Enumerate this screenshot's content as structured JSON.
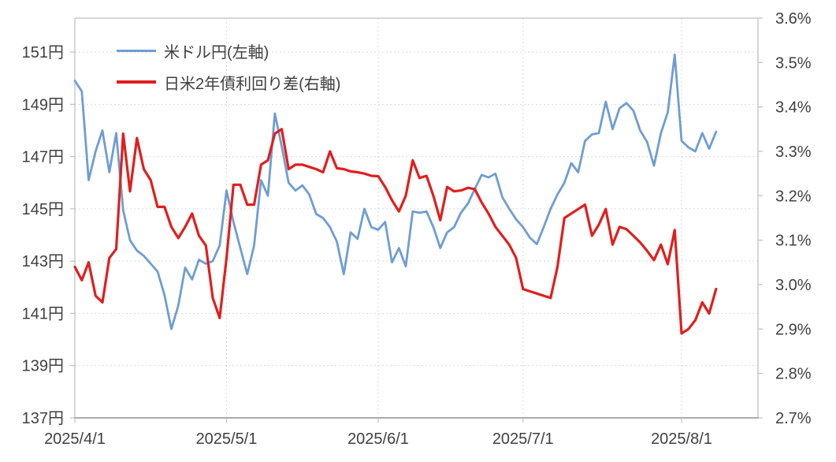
{
  "colors": {
    "usdjpy_line": "#6E9DD2",
    "spread_line": "#DF1F1F",
    "gridline": "#D9D9D9",
    "axis_line": "#BFBFBF",
    "axis_bottom_line": "#ABABAB",
    "text": "#404040",
    "background": "#FFFFFF"
  },
  "legend": {
    "item1": "米ドル円(左軸)",
    "item2": "日米2年債利回り差(右軸)"
  },
  "chart_data": {
    "type": "line",
    "title": "",
    "grid": "on",
    "legend_position": "top-left-inside",
    "x_axis": {
      "labels": [
        "2025/4/1",
        "2025/5/1",
        "2025/6/1",
        "2025/7/1",
        "2025/8/1"
      ],
      "indices": [
        0,
        22,
        44,
        65,
        88
      ]
    },
    "left_axis": {
      "title": "",
      "unit": "円",
      "labels": [
        "151円",
        "149円",
        "147円",
        "145円",
        "143円",
        "141円",
        "139円",
        "137円"
      ],
      "values": [
        151,
        149,
        147,
        145,
        143,
        141,
        139,
        137
      ],
      "min": 137,
      "max": 152.3
    },
    "right_axis": {
      "title": "",
      "unit": "%",
      "labels": [
        "3.6%",
        "3.5%",
        "3.4%",
        "3.3%",
        "3.2%",
        "3.1%",
        "3.0%",
        "2.9%",
        "2.8%",
        "2.7%"
      ],
      "values": [
        3.6,
        3.5,
        3.4,
        3.3,
        3.2,
        3.1,
        3.0,
        2.9,
        2.8,
        2.7
      ],
      "min": 2.7,
      "max": 3.6
    },
    "dates": [
      "4/1",
      "4/2",
      "4/3",
      "4/4",
      "4/7",
      "4/8",
      "4/9",
      "4/10",
      "4/11",
      "4/14",
      "4/15",
      "4/16",
      "4/17",
      "4/18",
      "4/21",
      "4/22",
      "4/23",
      "4/24",
      "4/25",
      "4/28",
      "4/29",
      "4/30",
      "5/1",
      "5/2",
      "5/5",
      "5/6",
      "5/7",
      "5/8",
      "5/9",
      "5/12",
      "5/13",
      "5/14",
      "5/15",
      "5/16",
      "5/19",
      "5/20",
      "5/21",
      "5/22",
      "5/23",
      "5/26",
      "5/27",
      "5/28",
      "5/29",
      "5/30",
      "6/2",
      "6/3",
      "6/4",
      "6/5",
      "6/6",
      "6/9",
      "6/10",
      "6/11",
      "6/12",
      "6/13",
      "6/16",
      "6/17",
      "6/18",
      "6/19",
      "6/20",
      "6/23",
      "6/24",
      "6/25",
      "6/26",
      "6/27",
      "6/30",
      "7/1",
      "7/2",
      "7/3",
      "7/4",
      "7/7",
      "7/8",
      "7/9",
      "7/10",
      "7/11",
      "7/14",
      "7/15",
      "7/16",
      "7/17",
      "7/18",
      "7/21",
      "7/22",
      "7/23",
      "7/24",
      "7/25",
      "7/28",
      "7/29",
      "7/30",
      "7/31",
      "8/1",
      "8/4",
      "8/5",
      "8/6",
      "8/7",
      "8/8"
    ],
    "series": [
      {
        "name": "米ドル円(左軸)",
        "id": "usdjpy",
        "axis": "left",
        "color": "#6E9DD2",
        "stroke_width": 2.8,
        "values": [
          149.9,
          149.5,
          146.1,
          147.2,
          148.0,
          146.4,
          147.9,
          144.95,
          143.8,
          143.4,
          143.2,
          142.9,
          142.6,
          141.7,
          140.4,
          141.3,
          142.75,
          142.3,
          143.05,
          142.9,
          143.0,
          143.6,
          145.7,
          144.5,
          143.5,
          142.5,
          143.6,
          146.1,
          145.5,
          148.65,
          147.4,
          146.0,
          145.7,
          145.9,
          145.55,
          144.8,
          144.65,
          144.3,
          143.75,
          142.5,
          144.1,
          143.85,
          145.0,
          144.3,
          144.2,
          144.5,
          142.95,
          143.5,
          142.8,
          144.9,
          144.85,
          144.9,
          144.3,
          143.5,
          144.1,
          144.3,
          144.85,
          145.2,
          145.75,
          146.3,
          146.2,
          146.35,
          145.45,
          145.0,
          144.6,
          144.3,
          143.9,
          143.65,
          144.3,
          145.0,
          145.55,
          146.0,
          146.75,
          146.4,
          147.6,
          147.85,
          147.9,
          149.1,
          148.05,
          148.85,
          149.05,
          148.76,
          148.0,
          147.56,
          146.65,
          147.9,
          148.7,
          150.9,
          147.6,
          147.35,
          147.2,
          147.9,
          147.3,
          147.95
        ]
      },
      {
        "name": "日米2年債利回り差(右軸)",
        "id": "yield-spread",
        "axis": "right",
        "color": "#DF1F1F",
        "stroke_width": 3.2,
        "values": [
          3.04,
          3.01,
          3.05,
          2.975,
          2.96,
          3.06,
          3.08,
          3.34,
          3.21,
          3.33,
          3.26,
          3.235,
          3.175,
          3.175,
          3.13,
          3.105,
          3.13,
          3.16,
          3.11,
          3.088,
          2.97,
          2.925,
          3.06,
          3.225,
          3.225,
          3.18,
          3.18,
          3.27,
          3.28,
          3.34,
          3.35,
          3.26,
          3.27,
          3.27,
          3.265,
          3.26,
          3.253,
          3.3,
          3.262,
          3.26,
          3.255,
          3.253,
          3.25,
          3.245,
          3.244,
          3.22,
          3.19,
          3.165,
          3.2,
          3.28,
          3.24,
          3.245,
          3.2,
          3.145,
          3.22,
          3.21,
          3.212,
          3.218,
          3.215,
          3.185,
          3.16,
          3.13,
          3.11,
          3.09,
          3.06,
          2.99,
          2.985,
          2.98,
          2.975,
          2.97,
          3.04,
          3.15,
          3.16,
          3.17,
          3.18,
          3.11,
          3.135,
          3.17,
          3.09,
          3.13,
          3.125,
          3.11,
          3.095,
          3.076,
          3.055,
          3.09,
          3.046,
          3.123,
          2.89,
          2.9,
          2.92,
          2.96,
          2.935,
          2.99
        ]
      }
    ]
  }
}
